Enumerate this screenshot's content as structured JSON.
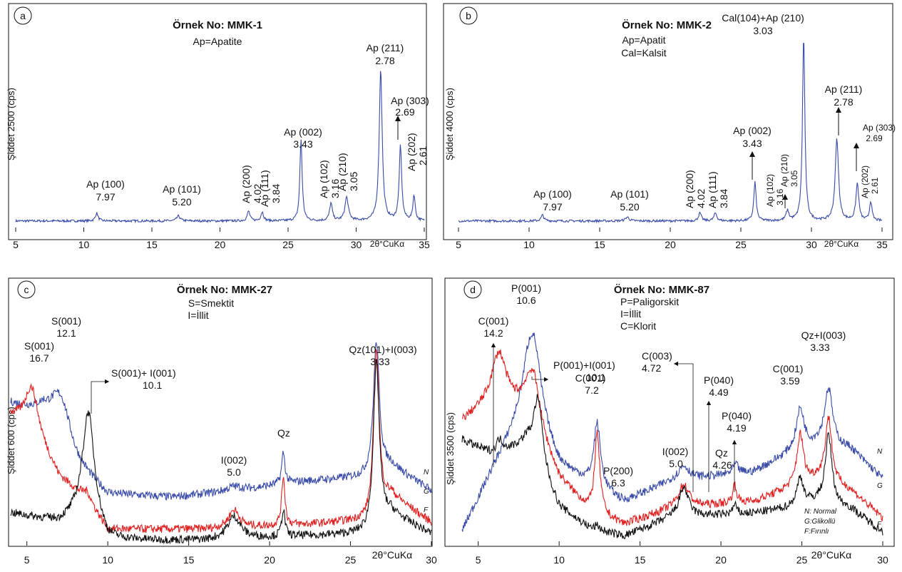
{
  "panel_letters": [
    "a",
    "b",
    "c",
    "d"
  ],
  "x_axis_unit": "2θ°CuKα",
  "legend": {
    "N": "N: Normal",
    "G": "G:Glikollü",
    "F": "F:Fırınlı"
  },
  "chart_data": [
    {
      "type": "line",
      "panel": "a",
      "title": "Örnek No: MMK-1",
      "subtitle": [
        "Ap=Apatite"
      ],
      "ylabel": "Şiddet 2500 (cps)",
      "xlabel": "2θ°CuKα",
      "xlim": [
        5,
        35
      ],
      "xticks": [
        5,
        10,
        15,
        20,
        25,
        30,
        35
      ],
      "series": [
        {
          "color": "#3a4ba8",
          "baseline": 0.03,
          "peaks": [
            [
              10.95,
              0.04,
              0.12
            ],
            [
              16.95,
              0.025,
              0.15
            ],
            [
              22.1,
              0.05,
              0.12
            ],
            [
              23.1,
              0.045,
              0.12
            ],
            [
              25.95,
              0.42,
              0.1
            ],
            [
              28.15,
              0.09,
              0.12
            ],
            [
              29.3,
              0.12,
              0.15
            ],
            [
              31.8,
              0.78,
              0.13
            ],
            [
              33.25,
              0.38,
              0.11
            ],
            [
              34.25,
              0.13,
              0.1
            ]
          ]
        }
      ],
      "annotations": [
        {
          "label": "Ap (100)",
          "value": "7.97"
        },
        {
          "label": "Ap (101)",
          "value": "5.20"
        },
        {
          "label": "Ap (200)",
          "value": "4.02"
        },
        {
          "label": "Ap (111)",
          "value": "3.84"
        },
        {
          "label": "Ap (002)",
          "value": "3.43"
        },
        {
          "label": "Ap (102)",
          "value": "3.16"
        },
        {
          "label": "Ap (210)",
          "value": "3.05"
        },
        {
          "label": "Ap (211)",
          "value": "2.78"
        },
        {
          "label": "Ap (303)",
          "value": "2.69"
        },
        {
          "label": "Ap (202)",
          "value": "2.61"
        }
      ]
    },
    {
      "type": "line",
      "panel": "b",
      "title": "Örnek No: MMK-2",
      "subtitle": [
        "Ap=Apatit",
        "Cal=Kalsit"
      ],
      "ylabel": "Şiddet 4000 (cps)",
      "xlabel": "2θ°CuKα",
      "xlim": [
        5,
        35
      ],
      "xticks": [
        5,
        10,
        15,
        20,
        25,
        30,
        35
      ],
      "series": [
        {
          "color": "#3a4ba8",
          "baseline": 0.03,
          "peaks": [
            [
              10.95,
              0.03,
              0.12
            ],
            [
              16.95,
              0.02,
              0.15
            ],
            [
              22.1,
              0.04,
              0.12
            ],
            [
              23.2,
              0.04,
              0.12
            ],
            [
              26.0,
              0.2,
              0.1
            ],
            [
              28.3,
              0.05,
              0.12
            ],
            [
              29.45,
              0.95,
              0.1
            ],
            [
              31.8,
              0.42,
              0.14
            ],
            [
              33.25,
              0.19,
              0.12
            ],
            [
              34.2,
              0.1,
              0.1
            ]
          ]
        }
      ],
      "annotations": [
        {
          "label": "Cal(104)+Ap (210)",
          "value": "3.03"
        },
        {
          "label": "Ap (100)",
          "value": "7.97"
        },
        {
          "label": "Ap (101)",
          "value": "5.20"
        },
        {
          "label": "Ap (200)",
          "value": "4.02"
        },
        {
          "label": "Ap (111)",
          "value": "3.84"
        },
        {
          "label": "Ap (002)",
          "value": "3.43"
        },
        {
          "label": "Ap (102)",
          "value": "3.16"
        },
        {
          "label": "Ap (210)",
          "value": "3.05"
        },
        {
          "label": "Ap (211)",
          "value": "2.78"
        },
        {
          "label": "Ap (303)",
          "value": "2.69"
        },
        {
          "label": "Ap (202)",
          "value": "2.61"
        }
      ]
    },
    {
      "type": "line",
      "panel": "c",
      "title": "Örnek No: MMK-27",
      "subtitle": [
        "S=Smektit",
        "I=İllit"
      ],
      "ylabel": "Şiddet 600  (cps)",
      "xlabel": "2θ°CuKα",
      "xlim": [
        4,
        30
      ],
      "xticks": [
        5,
        10,
        15,
        20,
        25,
        30
      ],
      "series": [
        {
          "name": "N",
          "color": "#3a4ba8",
          "baseline": 0.18,
          "bg": [
            [
              4,
              0.6
            ],
            [
              6,
              0.55
            ],
            [
              8,
              0.32
            ],
            [
              10,
              0.2
            ],
            [
              14,
              0.19
            ],
            [
              18,
              0.22
            ],
            [
              22,
              0.26
            ],
            [
              26,
              0.28
            ],
            [
              27.5,
              0.33
            ],
            [
              30,
              0.22
            ]
          ],
          "peaks": [
            [
              7.1,
              0.22,
              0.8
            ],
            [
              17.8,
              0.02,
              0.5
            ],
            [
              20.85,
              0.14,
              0.12
            ],
            [
              26.6,
              0.58,
              0.22
            ]
          ]
        },
        {
          "name": "G",
          "color": "#e02020",
          "baseline": 0.1,
          "bg": [
            [
              4,
              0.55
            ],
            [
              5.3,
              0.5
            ],
            [
              7,
              0.28
            ],
            [
              8.8,
              0.18
            ],
            [
              10,
              0.05
            ],
            [
              16,
              0.05
            ],
            [
              22,
              0.07
            ],
            [
              26,
              0.09
            ],
            [
              27.5,
              0.2
            ],
            [
              30,
              0.08
            ]
          ],
          "peaks": [
            [
              5.3,
              0.18,
              0.5
            ],
            [
              8.7,
              0.03,
              0.3
            ],
            [
              17.8,
              0.08,
              0.4
            ],
            [
              20.85,
              0.22,
              0.12
            ],
            [
              26.6,
              0.72,
              0.2
            ]
          ]
        },
        {
          "name": "F",
          "color": "#111111",
          "baseline": 0.0,
          "bg": [
            [
              4,
              0.12
            ],
            [
              7,
              0.08
            ],
            [
              8.8,
              0.12
            ],
            [
              10,
              0.0
            ],
            [
              16,
              0.0
            ],
            [
              22,
              0.02
            ],
            [
              26,
              0.03
            ],
            [
              27.5,
              0.12
            ],
            [
              30,
              0.03
            ]
          ],
          "peaks": [
            [
              8.8,
              0.45,
              0.45
            ],
            [
              17.8,
              0.1,
              0.5
            ],
            [
              20.85,
              0.12,
              0.12
            ],
            [
              26.6,
              0.72,
              0.22
            ]
          ]
        }
      ],
      "annotations": [
        {
          "label": "S(001)",
          "value": "16.7"
        },
        {
          "label": "S(001)",
          "value": "12.1"
        },
        {
          "label": "S(001)+ I(001)",
          "value": "10.1"
        },
        {
          "label": "I(002)",
          "value": "5.0"
        },
        {
          "label": "Qz",
          "value": ""
        },
        {
          "label": "Qz(101)+I(003)",
          "value": "3.33"
        }
      ]
    },
    {
      "type": "line",
      "panel": "d",
      "title": "Örnek No: MMK-87",
      "subtitle": [
        "P=Paligorskit",
        "I=İllit",
        "C=Klorit"
      ],
      "ylabel": "Şiddet 3500  (cps)",
      "xlabel": "2θ°CuKα",
      "xlim": [
        4,
        30
      ],
      "xticks": [
        5,
        10,
        15,
        20,
        25,
        30
      ],
      "series": [
        {
          "name": "N",
          "color": "#3a4ba8",
          "baseline": 0.3,
          "bg": [
            [
              4,
              0.02
            ],
            [
              6,
              0.3
            ],
            [
              8,
              0.55
            ],
            [
              10,
              0.3
            ],
            [
              12,
              0.22
            ],
            [
              14,
              0.15
            ],
            [
              17,
              0.24
            ],
            [
              22,
              0.28
            ],
            [
              24,
              0.35
            ],
            [
              26,
              0.4
            ],
            [
              28,
              0.38
            ],
            [
              30,
              0.25
            ]
          ],
          "peaks": [
            [
              8.4,
              0.38,
              0.6
            ],
            [
              12.35,
              0.28,
              0.25
            ],
            [
              17.7,
              0.06,
              0.4
            ],
            [
              20.9,
              0.04,
              0.2
            ],
            [
              24.9,
              0.18,
              0.3
            ],
            [
              26.65,
              0.25,
              0.3
            ]
          ]
        },
        {
          "name": "G",
          "color": "#e02020",
          "baseline": 0.2,
          "bg": [
            [
              4,
              0.5
            ],
            [
              6,
              0.6
            ],
            [
              8,
              0.55
            ],
            [
              10,
              0.25
            ],
            [
              12,
              0.1
            ],
            [
              14,
              0.05
            ],
            [
              17,
              0.12
            ],
            [
              22,
              0.15
            ],
            [
              24,
              0.2
            ],
            [
              26,
              0.25
            ],
            [
              28,
              0.2
            ],
            [
              30,
              0.08
            ]
          ],
          "peaks": [
            [
              6.3,
              0.2,
              0.5
            ],
            [
              8.4,
              0.22,
              0.5
            ],
            [
              12.35,
              0.35,
              0.2
            ],
            [
              17.7,
              0.1,
              0.4
            ],
            [
              20.85,
              0.08,
              0.15
            ],
            [
              24.9,
              0.22,
              0.25
            ],
            [
              26.65,
              0.28,
              0.25
            ]
          ]
        },
        {
          "name": "F",
          "color": "#111111",
          "baseline": 0.15,
          "bg": [
            [
              4,
              0.42
            ],
            [
              6,
              0.35
            ],
            [
              8,
              0.4
            ],
            [
              10,
              0.12
            ],
            [
              12,
              0.03
            ],
            [
              14,
              0.0
            ],
            [
              17,
              0.08
            ],
            [
              22,
              0.1
            ],
            [
              24,
              0.12
            ],
            [
              26,
              0.15
            ],
            [
              28,
              0.12
            ],
            [
              30,
              0.02
            ]
          ],
          "peaks": [
            [
              6.3,
              0.06,
              0.3
            ],
            [
              8.7,
              0.3,
              0.35
            ],
            [
              12.35,
              0.02,
              0.2
            ],
            [
              17.7,
              0.13,
              0.35
            ],
            [
              20.85,
              0.04,
              0.15
            ],
            [
              24.9,
              0.12,
              0.25
            ],
            [
              26.65,
              0.3,
              0.25
            ]
          ]
        }
      ],
      "annotations": [
        {
          "label": "P(001)",
          "value": "10.6"
        },
        {
          "label": "C(001)",
          "value": "14.2"
        },
        {
          "label": "P(001)+I(001)",
          "value": "10.1"
        },
        {
          "label": "C(001)",
          "value": "7.2"
        },
        {
          "label": "P(200)",
          "value": "6.3"
        },
        {
          "label": "I(002)",
          "value": "5.0"
        },
        {
          "label": "C(003)",
          "value": "4.72"
        },
        {
          "label": "P(040)",
          "value": "4.49"
        },
        {
          "label": "P(040)",
          "value": "4.19"
        },
        {
          "label": "Qz",
          "value": "4.26"
        },
        {
          "label": "C(001)",
          "value": "3.59"
        },
        {
          "label": "Qz+I(003)",
          "value": "3.33"
        }
      ]
    }
  ]
}
